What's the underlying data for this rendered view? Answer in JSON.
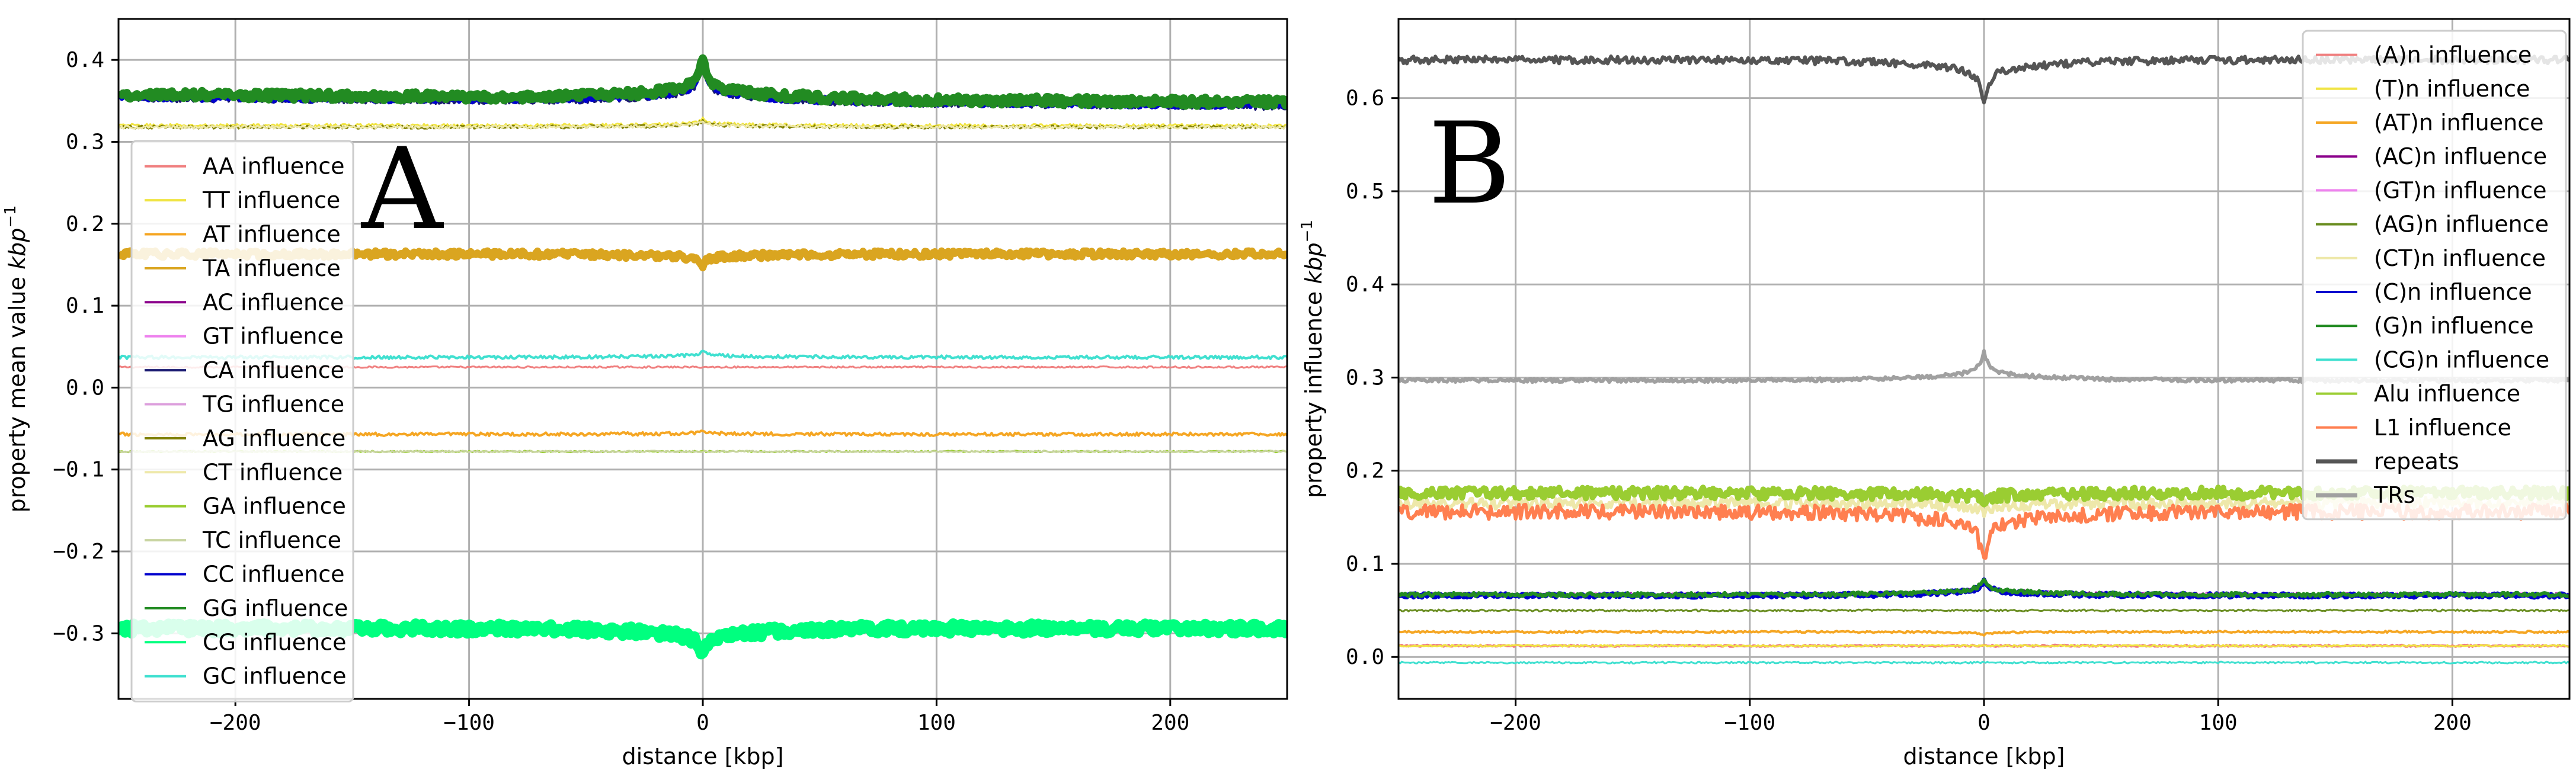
{
  "chart_data": [
    {
      "type": "line",
      "panel_label": "A",
      "xlabel": "distance [kbp]",
      "ylabel": "property mean value",
      "ylabel_unit": "kbp",
      "ylabel_unit_exp": "−1",
      "xlim": [
        -250,
        250
      ],
      "ylim": [
        -0.38,
        0.45
      ],
      "xticks": [
        -200,
        -100,
        0,
        100,
        200
      ],
      "xtick_labels": [
        "−200",
        "−100",
        "0",
        "100",
        "200"
      ],
      "yticks": [
        -0.3,
        -0.2,
        -0.1,
        0.0,
        0.1,
        0.2,
        0.3,
        0.4
      ],
      "ytick_labels": [
        "−0.3",
        "−0.2",
        "−0.1",
        "0.0",
        "0.1",
        "0.2",
        "0.3",
        "0.4"
      ],
      "grid": true,
      "legend_position": "left",
      "series": [
        {
          "name": "AA influence",
          "color": "#f08080",
          "base": 0.025,
          "dip": 0.0,
          "noise": 0.001,
          "width": 3,
          "in_legend": true
        },
        {
          "name": "TT influence",
          "color": "#f0e442",
          "base": 0.32,
          "dip": 0.008,
          "noise": 0.002,
          "width": 3,
          "in_legend": true
        },
        {
          "name": "AT influence",
          "color": "#f5a623",
          "base": -0.057,
          "dip": 0.004,
          "noise": 0.002,
          "width": 4,
          "in_legend": true
        },
        {
          "name": "TA influence",
          "color": "#daa520",
          "base": 0.163,
          "dip": -0.013,
          "noise": 0.004,
          "width": 12,
          "in_legend": true
        },
        {
          "name": "AC influence",
          "color": "#8b008b",
          "base": 0.352,
          "dip": 0.045,
          "noise": 0.004,
          "width": 3,
          "in_legend": true
        },
        {
          "name": "GT influence",
          "color": "#ee82ee",
          "base": 0.352,
          "dip": 0.045,
          "noise": 0.004,
          "width": 3,
          "in_legend": true
        },
        {
          "name": "CA influence",
          "color": "#191970",
          "base": 0.348,
          "dip": 0.045,
          "noise": 0.004,
          "width": 4,
          "in_legend": true
        },
        {
          "name": "TG influence",
          "color": "#dda0dd",
          "base": 0.352,
          "dip": 0.045,
          "noise": 0.004,
          "width": 3,
          "in_legend": true
        },
        {
          "name": "AG influence",
          "color": "#808000",
          "base": 0.318,
          "dip": 0.008,
          "noise": 0.002,
          "width": 3,
          "in_legend": true
        },
        {
          "name": "CT influence",
          "color": "#eee8aa",
          "base": 0.318,
          "dip": 0.008,
          "noise": 0.002,
          "width": 3,
          "in_legend": true
        },
        {
          "name": "GA influence",
          "color": "#9acd32",
          "base": -0.078,
          "dip": 0.0,
          "noise": 0.001,
          "width": 3,
          "in_legend": true
        },
        {
          "name": "TC influence",
          "color": "#c8d4a0",
          "base": -0.078,
          "dip": 0.0,
          "noise": 0.001,
          "width": 3,
          "in_legend": true
        },
        {
          "name": "CC influence",
          "color": "#0000cd",
          "base": 0.35,
          "dip": 0.045,
          "noise": 0.004,
          "width": 8,
          "in_legend": true
        },
        {
          "name": "GG influence",
          "color": "#228b22",
          "base": 0.353,
          "dip": 0.05,
          "noise": 0.005,
          "width": 14,
          "in_legend": true
        },
        {
          "name": "CG influence",
          "color": "#00ff7f",
          "base": -0.294,
          "dip": -0.035,
          "noise": 0.006,
          "width": 18,
          "in_legend": true
        },
        {
          "name": "GC influence",
          "color": "#40e0d0",
          "base": 0.037,
          "dip": 0.008,
          "noise": 0.002,
          "width": 4,
          "in_legend": true
        }
      ]
    },
    {
      "type": "line",
      "panel_label": "B",
      "xlabel": "distance [kbp]",
      "ylabel": "property influence",
      "ylabel_unit": "kbp",
      "ylabel_unit_exp": "−1",
      "xlim": [
        -250,
        250
      ],
      "ylim": [
        -0.045,
        0.685
      ],
      "xticks": [
        -200,
        -100,
        0,
        100,
        200
      ],
      "xtick_labels": [
        "−200",
        "−100",
        "0",
        "100",
        "200"
      ],
      "yticks": [
        0.0,
        0.1,
        0.2,
        0.3,
        0.4,
        0.5,
        0.6
      ],
      "ytick_labels": [
        "0.0",
        "0.1",
        "0.2",
        "0.3",
        "0.4",
        "0.5",
        "0.6"
      ],
      "grid": true,
      "legend_position": "upper-right",
      "series": [
        {
          "name": "(A)n influence",
          "color": "#f08080",
          "base": 0.012,
          "dip": 0.0,
          "noise": 0.001,
          "width": 4,
          "in_legend": true
        },
        {
          "name": "(T)n influence",
          "color": "#f0e442",
          "base": 0.012,
          "dip": 0.0,
          "noise": 0.001,
          "width": 3,
          "in_legend": true
        },
        {
          "name": "(AT)n influence",
          "color": "#f5a623",
          "base": 0.027,
          "dip": -0.003,
          "noise": 0.001,
          "width": 4,
          "in_legend": true
        },
        {
          "name": "(AC)n influence",
          "color": "#8b008b",
          "base": 0.067,
          "dip": 0.016,
          "noise": 0.002,
          "width": 3,
          "in_legend": true
        },
        {
          "name": "(GT)n influence",
          "color": "#ee82ee",
          "base": 0.067,
          "dip": 0.016,
          "noise": 0.002,
          "width": 3,
          "in_legend": true
        },
        {
          "name": "(AG)n influence",
          "color": "#6b8e23",
          "base": 0.05,
          "dip": 0.0,
          "noise": 0.001,
          "width": 3,
          "in_legend": true
        },
        {
          "name": "(CT)n influence",
          "color": "#eee8aa",
          "base": 0.165,
          "dip": -0.01,
          "noise": 0.006,
          "width": 6,
          "in_legend": true
        },
        {
          "name": "(C)n influence",
          "color": "#0000cd",
          "base": 0.066,
          "dip": 0.016,
          "noise": 0.002,
          "width": 8,
          "in_legend": true
        },
        {
          "name": "(G)n influence",
          "color": "#228b22",
          "base": 0.067,
          "dip": 0.017,
          "noise": 0.002,
          "width": 6,
          "in_legend": true
        },
        {
          "name": "(CG)n influence",
          "color": "#40e0d0",
          "base": -0.006,
          "dip": 0.0,
          "noise": 0.001,
          "width": 3,
          "in_legend": true
        },
        {
          "name": "Alu influence",
          "color": "#9acd32",
          "base": 0.176,
          "dip": -0.01,
          "noise": 0.006,
          "width": 10,
          "in_legend": true
        },
        {
          "name": "L1 influence",
          "color": "#ff7f50",
          "base": 0.156,
          "dip": -0.055,
          "noise": 0.008,
          "width": 6,
          "in_legend": true
        },
        {
          "name": "repeats",
          "color": "#555555",
          "base": 0.641,
          "dip": -0.045,
          "noise": 0.004,
          "width": 6,
          "in_legend": true
        },
        {
          "name": "TRs",
          "color": "#a0a0a0",
          "base": 0.297,
          "dip": 0.03,
          "noise": 0.002,
          "width": 6,
          "in_legend": true
        }
      ]
    }
  ]
}
